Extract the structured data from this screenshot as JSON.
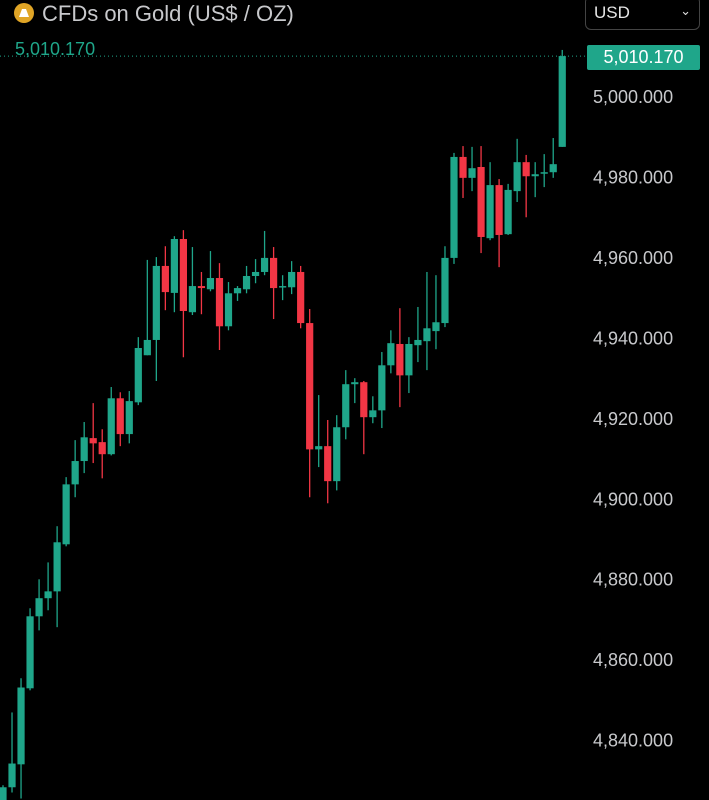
{
  "header": {
    "title": "CFDs on Gold (US$ / OZ)",
    "icon": "gold-bars-icon",
    "currency": "USD"
  },
  "last_price": "5,010.170",
  "colors": {
    "up": "#1fa68a",
    "down": "#f23645",
    "accent": "#e0a526"
  },
  "chart_data": {
    "type": "candlestick",
    "title": "CFDs on Gold (US$ / OZ)",
    "ylim": [
      4825,
      5012
    ],
    "y_ticks": [
      "5,000.000",
      "4,980.000",
      "4,960.000",
      "4,940.000",
      "4,920.000",
      "4,900.000",
      "4,880.000",
      "4,860.000",
      "4,840.000"
    ],
    "y_tick_values": [
      5000,
      4980,
      4960,
      4940,
      4920,
      4900,
      4880,
      4860,
      4840
    ],
    "last_price": 5010.17,
    "grid": false,
    "ohlc": [
      [
        4825.1,
        4828.9,
        4825.1,
        4828.4
      ],
      [
        4828.4,
        4847.0,
        4827.1,
        4834.3
      ],
      [
        4834.1,
        4855.5,
        4825.6,
        4853.2
      ],
      [
        4853.0,
        4872.9,
        4852.5,
        4870.9
      ],
      [
        4870.9,
        4880.1,
        4867.4,
        4875.4
      ],
      [
        4875.4,
        4884.3,
        4872.4,
        4877.1
      ],
      [
        4877.1,
        4893.3,
        4868.2,
        4889.3
      ],
      [
        4888.8,
        4905.5,
        4888.3,
        4903.7
      ],
      [
        4903.7,
        4914.7,
        4900.5,
        4909.5
      ],
      [
        4909.5,
        4919.2,
        4906.5,
        4915.4
      ],
      [
        4915.2,
        4923.9,
        4909.0,
        4913.9
      ],
      [
        4914.2,
        4917.4,
        4905.2,
        4911.2
      ],
      [
        4911.2,
        4927.9,
        4910.9,
        4925.1
      ],
      [
        4925.1,
        4926.6,
        4913.2,
        4916.2
      ],
      [
        4916.2,
        4926.9,
        4913.9,
        4924.4
      ],
      [
        4924.1,
        4940.3,
        4923.4,
        4937.6
      ],
      [
        4935.8,
        4959.5,
        4935.8,
        4939.6
      ],
      [
        4939.6,
        4960.2,
        4929.4,
        4958.0
      ],
      [
        4958.0,
        4962.9,
        4947.0,
        4951.5
      ],
      [
        4951.3,
        4965.4,
        4946.5,
        4964.7
      ],
      [
        4964.7,
        4966.9,
        4935.3,
        4946.8
      ],
      [
        4946.5,
        4962.7,
        4945.8,
        4953.0
      ],
      [
        4953.0,
        4956.5,
        4946.0,
        4952.5
      ],
      [
        4952.2,
        4961.7,
        4951.7,
        4955.0
      ],
      [
        4955.0,
        4958.7,
        4937.1,
        4943.0
      ],
      [
        4943.0,
        4954.0,
        4942.0,
        4951.2
      ],
      [
        4951.2,
        4953.0,
        4949.3,
        4952.5
      ],
      [
        4952.2,
        4958.0,
        4951.2,
        4955.5
      ],
      [
        4955.5,
        4959.7,
        4953.7,
        4956.5
      ],
      [
        4956.5,
        4966.7,
        4955.7,
        4960.0
      ],
      [
        4960.0,
        4962.7,
        4944.8,
        4952.5
      ],
      [
        4952.7,
        4955.7,
        4949.5,
        4953.0
      ],
      [
        4952.7,
        4959.2,
        4951.0,
        4956.5
      ],
      [
        4956.5,
        4958.0,
        4942.5,
        4943.8
      ],
      [
        4943.8,
        4947.3,
        4900.5,
        4912.4
      ],
      [
        4912.4,
        4925.9,
        4908.0,
        4913.2
      ],
      [
        4913.2,
        4919.7,
        4899.0,
        4904.5
      ],
      [
        4904.5,
        4920.9,
        4902.2,
        4917.9
      ],
      [
        4917.9,
        4932.1,
        4914.9,
        4928.6
      ],
      [
        4928.6,
        4930.1,
        4923.9,
        4929.1
      ],
      [
        4929.1,
        4929.4,
        4911.2,
        4920.4
      ],
      [
        4920.4,
        4925.6,
        4918.9,
        4922.1
      ],
      [
        4922.1,
        4936.6,
        4917.7,
        4933.3
      ],
      [
        4933.3,
        4942.0,
        4931.3,
        4938.8
      ],
      [
        4938.6,
        4947.5,
        4922.9,
        4930.8
      ],
      [
        4930.8,
        4940.3,
        4926.4,
        4938.6
      ],
      [
        4938.3,
        4947.8,
        4934.1,
        4939.6
      ],
      [
        4939.3,
        4956.5,
        4932.1,
        4942.5
      ],
      [
        4941.8,
        4955.7,
        4937.3,
        4944.0
      ],
      [
        4943.8,
        4962.9,
        4942.8,
        4960.0
      ],
      [
        4960.0,
        4986.1,
        4958.5,
        4985.1
      ],
      [
        4985.1,
        4987.8,
        4974.9,
        4979.9
      ],
      [
        4979.9,
        4987.6,
        4976.6,
        4982.3
      ],
      [
        4982.6,
        4987.8,
        4961.2,
        4965.2
      ],
      [
        4964.9,
        4983.8,
        4964.4,
        4978.1
      ],
      [
        4978.1,
        4979.6,
        4957.7,
        4965.7
      ],
      [
        4965.9,
        4978.4,
        4965.7,
        4976.9
      ],
      [
        4976.6,
        4989.6,
        4973.9,
        4983.8
      ],
      [
        4983.8,
        4985.6,
        4970.1,
        4980.3
      ],
      [
        4980.3,
        4983.8,
        4975.1,
        4980.8
      ],
      [
        4981.1,
        4985.8,
        4977.6,
        4981.3
      ],
      [
        4981.3,
        4989.8,
        4979.9,
        4983.3
      ],
      [
        4987.6,
        5011.7,
        4987.6,
        5010.17
      ]
    ]
  }
}
